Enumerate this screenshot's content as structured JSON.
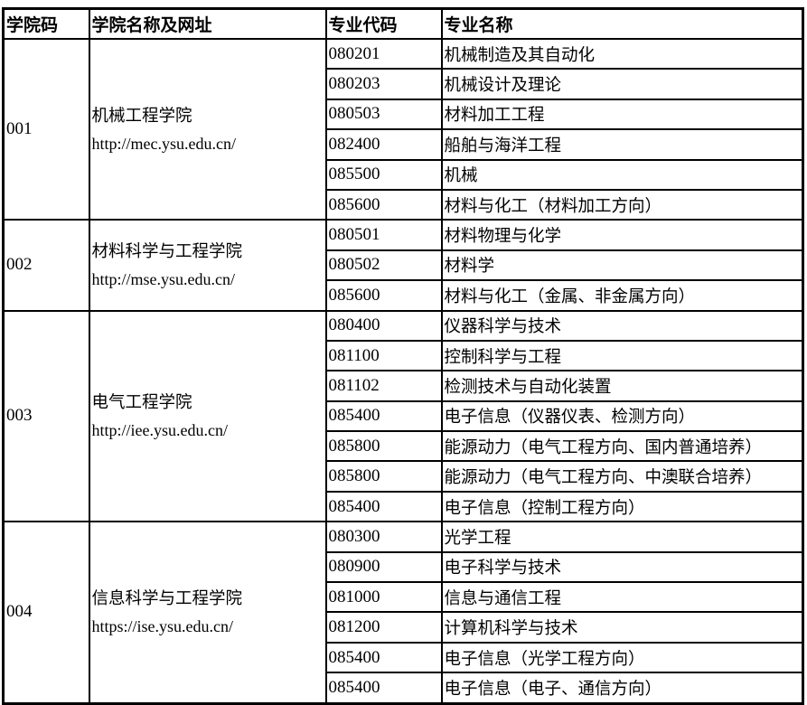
{
  "headers": {
    "college_code": "学院码",
    "college_name": "学院名称及网址",
    "major_code": "专业代码",
    "major_name": "专业名称"
  },
  "colleges": [
    {
      "code": "001",
      "name": "机械工程学院",
      "url": "http://mec.ysu.edu.cn/",
      "majors": [
        {
          "code": "080201",
          "name": "机械制造及其自动化"
        },
        {
          "code": "080203",
          "name": "机械设计及理论"
        },
        {
          "code": "080503",
          "name": "材料加工工程"
        },
        {
          "code": "082400",
          "name": "船舶与海洋工程"
        },
        {
          "code": "085500",
          "name": "机械"
        },
        {
          "code": "085600",
          "name": "材料与化工（材料加工方向）"
        }
      ]
    },
    {
      "code": "002",
      "name": "材料科学与工程学院",
      "url": "http://mse.ysu.edu.cn/",
      "majors": [
        {
          "code": "080501",
          "name": "材料物理与化学"
        },
        {
          "code": "080502",
          "name": "材料学"
        },
        {
          "code": "085600",
          "name": "材料与化工（金属、非金属方向）"
        }
      ]
    },
    {
      "code": "003",
      "name": "电气工程学院",
      "url": "http://iee.ysu.edu.cn/",
      "majors": [
        {
          "code": "080400",
          "name": "仪器科学与技术"
        },
        {
          "code": "081100",
          "name": "控制科学与工程"
        },
        {
          "code": "081102",
          "name": "检测技术与自动化装置"
        },
        {
          "code": "085400",
          "name": "电子信息（仪器仪表、检测方向）"
        },
        {
          "code": "085800",
          "name": "能源动力（电气工程方向、国内普通培养）"
        },
        {
          "code": "085800",
          "name": "能源动力（电气工程方向、中澳联合培养）"
        },
        {
          "code": "085400",
          "name": "电子信息（控制工程方向）"
        }
      ]
    },
    {
      "code": "004",
      "name": "信息科学与工程学院",
      "url": "https://ise.ysu.edu.cn/",
      "majors": [
        {
          "code": "080300",
          "name": "光学工程"
        },
        {
          "code": "080900",
          "name": "电子科学与技术"
        },
        {
          "code": "081000",
          "name": "信息与通信工程"
        },
        {
          "code": "081200",
          "name": "计算机科学与技术"
        },
        {
          "code": "085400",
          "name": "电子信息（光学工程方向）"
        },
        {
          "code": "085400",
          "name": "电子信息（电子、通信方向）"
        }
      ]
    }
  ]
}
